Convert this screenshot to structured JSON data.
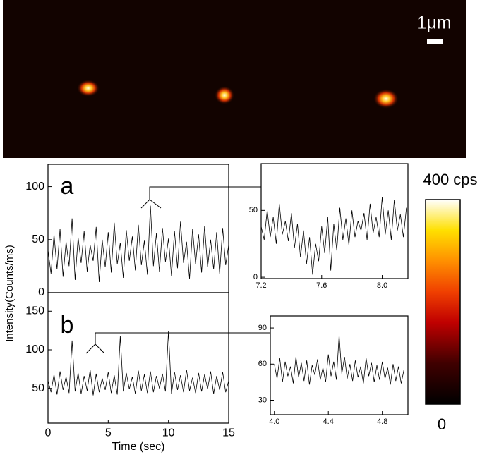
{
  "image": {
    "scale_bar_label": "1μm"
  },
  "colorbar": {
    "max_label": "400 cps",
    "min_label": "0"
  },
  "chart_data": [
    {
      "type": "line",
      "panel_label": "a",
      "ylim": [
        0,
        121
      ],
      "yticks": [
        0,
        50,
        100
      ],
      "xlim": [
        0,
        15
      ],
      "x": [
        0,
        0.25,
        0.5,
        0.75,
        1,
        1.25,
        1.5,
        1.75,
        2,
        2.25,
        2.5,
        2.75,
        3,
        3.25,
        3.5,
        3.75,
        4,
        4.25,
        4.5,
        4.75,
        5,
        5.25,
        5.5,
        5.75,
        6,
        6.25,
        6.5,
        6.75,
        7,
        7.25,
        7.5,
        7.75,
        8,
        8.25,
        8.5,
        8.75,
        9,
        9.25,
        9.5,
        9.75,
        10,
        10.25,
        10.5,
        10.75,
        11,
        11.25,
        11.5,
        11.75,
        12,
        12.25,
        12.5,
        12.75,
        13,
        13.25,
        13.5,
        13.75,
        14,
        14.25,
        14.5,
        14.75,
        15
      ],
      "series": [
        {
          "color": "#000000",
          "values": [
            40,
            18,
            55,
            22,
            60,
            15,
            48,
            25,
            70,
            12,
            52,
            28,
            58,
            20,
            45,
            30,
            62,
            10,
            50,
            24,
            57,
            19,
            66,
            27,
            47,
            14,
            59,
            30,
            53,
            21,
            64,
            26,
            49,
            17,
            82,
            25,
            56,
            20,
            61,
            29,
            51,
            16,
            58,
            23,
            67,
            28,
            48,
            13,
            60,
            27,
            55,
            19,
            63,
            24,
            50,
            22,
            57,
            18,
            61,
            26,
            45
          ]
        }
      ]
    },
    {
      "type": "line",
      "panel_label": "b",
      "y_label": "Intensity(Counts/ms)",
      "x_label": "Time (sec)",
      "ylim": [
        5,
        174
      ],
      "yticks": [
        50,
        100,
        150
      ],
      "xlim": [
        0,
        15
      ],
      "xticks": [
        0,
        5,
        10,
        15
      ],
      "x": [
        0,
        0.25,
        0.5,
        0.75,
        1,
        1.25,
        1.5,
        1.75,
        2,
        2.25,
        2.5,
        2.75,
        3,
        3.25,
        3.5,
        3.75,
        4,
        4.25,
        4.5,
        4.75,
        5,
        5.25,
        5.5,
        5.75,
        6,
        6.25,
        6.5,
        6.75,
        7,
        7.25,
        7.5,
        7.75,
        8,
        8.25,
        8.5,
        8.75,
        9,
        9.25,
        9.5,
        9.75,
        10,
        10.25,
        10.5,
        10.75,
        11,
        11.25,
        11.5,
        11.75,
        12,
        12.25,
        12.5,
        12.75,
        13,
        13.25,
        13.5,
        13.75,
        14,
        14.25,
        14.5,
        14.75,
        15
      ],
      "series": [
        {
          "color": "#000000",
          "values": [
            60,
            45,
            68,
            42,
            72,
            48,
            65,
            44,
            112,
            46,
            70,
            43,
            66,
            47,
            74,
            41,
            69,
            45,
            63,
            48,
            71,
            44,
            67,
            42,
            118,
            46,
            70,
            49,
            65,
            43,
            73,
            47,
            68,
            44,
            72,
            45,
            66,
            50,
            69,
            46,
            124,
            43,
            71,
            48,
            67,
            45,
            74,
            47,
            64,
            44,
            70,
            46,
            68,
            49,
            72,
            43,
            66,
            48,
            71,
            45,
            60
          ]
        }
      ]
    },
    {
      "type": "line",
      "ylim": [
        -1,
        85
      ],
      "yticks": [
        0,
        50
      ],
      "xlim": [
        7.2,
        8.17
      ],
      "xticks": [
        {
          "value": 7.2,
          "label": "7.2"
        },
        7.6,
        {
          "value": 8.0,
          "label": "8.0"
        }
      ],
      "x": [
        7.2,
        7.22,
        7.24,
        7.26,
        7.28,
        7.3,
        7.32,
        7.34,
        7.36,
        7.38,
        7.4,
        7.42,
        7.44,
        7.46,
        7.48,
        7.5,
        7.52,
        7.54,
        7.56,
        7.58,
        7.6,
        7.62,
        7.64,
        7.66,
        7.68,
        7.7,
        7.72,
        7.74,
        7.76,
        7.78,
        7.8,
        7.82,
        7.84,
        7.86,
        7.88,
        7.9,
        7.92,
        7.94,
        7.96,
        7.98,
        8,
        8.02,
        8.04,
        8.06,
        8.08,
        8.1,
        8.12,
        8.14,
        8.16
      ],
      "series": [
        {
          "color": "#000000",
          "values": [
            38,
            28,
            50,
            30,
            45,
            25,
            55,
            32,
            42,
            27,
            48,
            22,
            40,
            15,
            35,
            10,
            30,
            2,
            25,
            12,
            38,
            18,
            45,
            5,
            40,
            20,
            52,
            28,
            44,
            24,
            50,
            30,
            42,
            35,
            48,
            28,
            55,
            33,
            45,
            30,
            60,
            32,
            50,
            28,
            58,
            35,
            47,
            30,
            52
          ]
        }
      ]
    },
    {
      "type": "line",
      "ylim": [
        18,
        100
      ],
      "yticks": [
        30,
        60,
        90
      ],
      "xlim": [
        3.97,
        4.99
      ],
      "xticks": [
        {
          "value": 4.0,
          "label": "4.0"
        },
        4.4,
        4.8
      ],
      "x": [
        4,
        4.02,
        4.04,
        4.06,
        4.08,
        4.1,
        4.12,
        4.14,
        4.16,
        4.18,
        4.2,
        4.22,
        4.24,
        4.26,
        4.28,
        4.3,
        4.32,
        4.34,
        4.36,
        4.38,
        4.4,
        4.42,
        4.44,
        4.46,
        4.48,
        4.5,
        4.52,
        4.54,
        4.56,
        4.58,
        4.6,
        4.62,
        4.64,
        4.66,
        4.68,
        4.7,
        4.72,
        4.74,
        4.76,
        4.78,
        4.8,
        4.82,
        4.84,
        4.86,
        4.88,
        4.9,
        4.92,
        4.94,
        4.96
      ],
      "series": [
        {
          "color": "#000000",
          "values": [
            60,
            48,
            65,
            45,
            62,
            50,
            58,
            44,
            66,
            49,
            61,
            46,
            63,
            43,
            59,
            51,
            64,
            47,
            57,
            45,
            68,
            50,
            62,
            47,
            84,
            52,
            66,
            48,
            60,
            46,
            63,
            49,
            58,
            44,
            65,
            50,
            61,
            45,
            59,
            47,
            62,
            48,
            57,
            43,
            60,
            46,
            58,
            44,
            55
          ]
        }
      ]
    }
  ]
}
